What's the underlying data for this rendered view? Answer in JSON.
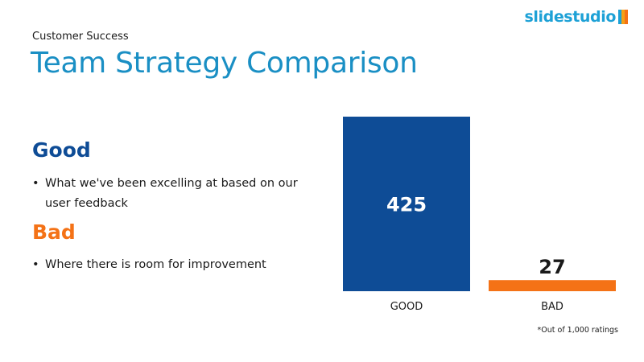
{
  "brand": {
    "name": "slidestudio",
    "colors": [
      "#1da1d6",
      "#f4a016",
      "#f47216"
    ]
  },
  "header": {
    "eyebrow": "Customer Success",
    "title": "Team Strategy Comparison"
  },
  "sections": {
    "good": {
      "heading": "Good",
      "bullet": "What we've been excelling at based on our user feedback",
      "color": "#0e4c96"
    },
    "bad": {
      "heading": "Bad",
      "bullet": "Where there is room for improvement",
      "color": "#f47216"
    }
  },
  "chart_data": {
    "type": "bar",
    "categories": [
      "GOOD",
      "BAD"
    ],
    "values": [
      425,
      27
    ],
    "colors": [
      "#0e4c96",
      "#f47216"
    ],
    "data_labels": [
      "425",
      "27"
    ],
    "ylim": [
      0,
      425
    ],
    "grid": false,
    "footnote": "*Out of 1,000 ratings"
  }
}
